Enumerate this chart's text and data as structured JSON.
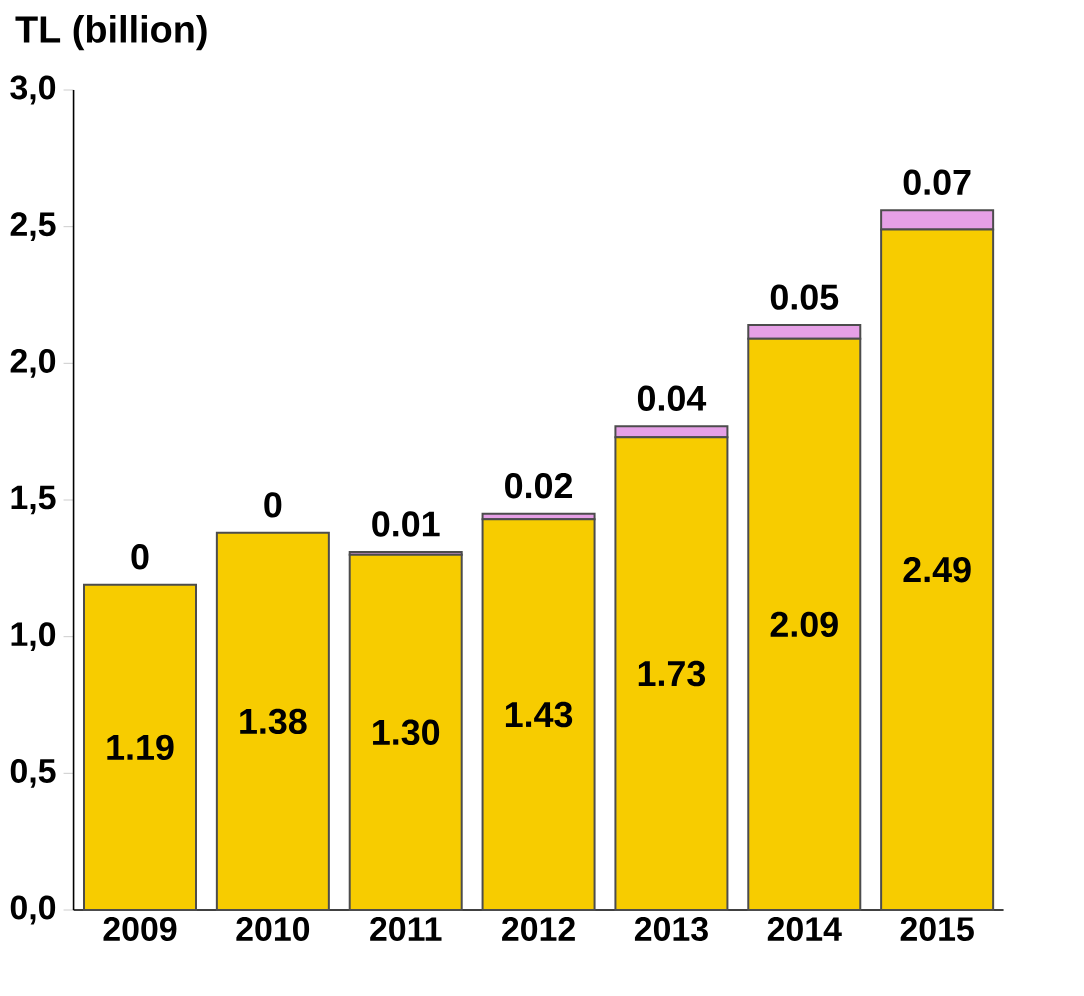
{
  "chart_data": {
    "type": "bar",
    "stacked": true,
    "ylabel": "TL (billion)",
    "categories": [
      "2009",
      "2010",
      "2011",
      "2012",
      "2013",
      "2014",
      "2015"
    ],
    "series": [
      {
        "color": "#f7cc00",
        "values": [
          1.19,
          1.38,
          1.3,
          1.43,
          1.73,
          2.09,
          2.49
        ],
        "value_labels": [
          "1.19",
          "1.38",
          "1.30",
          "1.43",
          "1.73",
          "2.09",
          "2.49"
        ]
      },
      {
        "color": "#e6a0e6",
        "values": [
          0,
          0,
          0.01,
          0.02,
          0.04,
          0.05,
          0.07
        ],
        "value_labels": [
          "0",
          "0",
          "0.01",
          "0.02",
          "0.04",
          "0.05",
          "0.07"
        ]
      }
    ],
    "ylim": [
      0,
      3
    ],
    "yticks": [
      {
        "value": 0,
        "label": "0,0"
      },
      {
        "value": 0.5,
        "label": "0,5"
      },
      {
        "value": 1,
        "label": "1,0"
      },
      {
        "value": 1.5,
        "label": "1,5"
      },
      {
        "value": 2,
        "label": "2,0"
      },
      {
        "value": 2.5,
        "label": "2,5"
      },
      {
        "value": 3,
        "label": "3,0"
      }
    ]
  }
}
